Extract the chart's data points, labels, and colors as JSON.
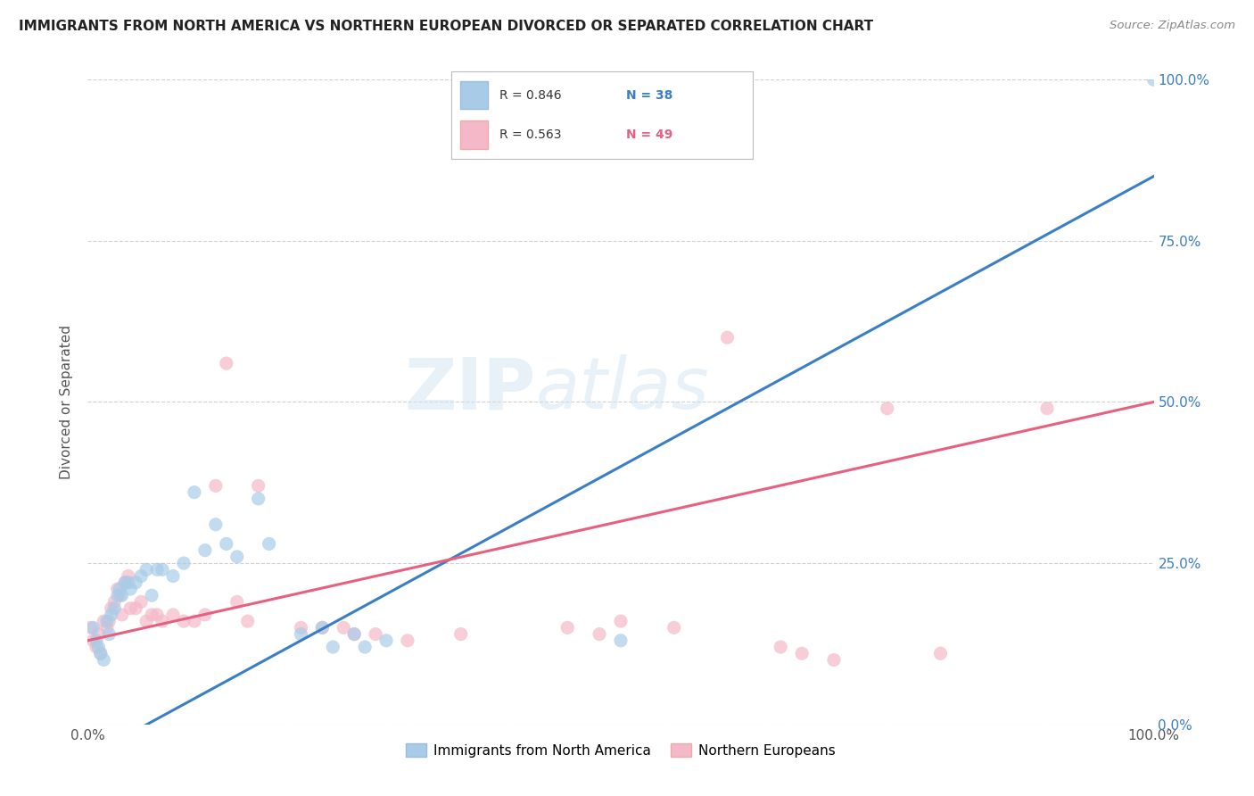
{
  "title": "IMMIGRANTS FROM NORTH AMERICA VS NORTHERN EUROPEAN DIVORCED OR SEPARATED CORRELATION CHART",
  "source": "Source: ZipAtlas.com",
  "ylabel": "Divorced or Separated",
  "legend_label_blue": "Immigrants from North America",
  "legend_label_pink": "Northern Europeans",
  "blue_R": "0.846",
  "blue_N": "38",
  "pink_R": "0.563",
  "pink_N": "49",
  "watermark_zip": "ZIP",
  "watermark_atlas": "atlas",
  "blue_color": "#a8cce8",
  "pink_color": "#f4b8c8",
  "blue_line_color": "#3a7ec8",
  "pink_line_color": "#e86080",
  "right_axis_color": "#3a7ec8",
  "blue_scatter": [
    [
      0.5,
      15.0
    ],
    [
      0.8,
      13.0
    ],
    [
      1.0,
      12.0
    ],
    [
      1.2,
      11.0
    ],
    [
      1.5,
      10.0
    ],
    [
      1.8,
      16.0
    ],
    [
      2.0,
      14.0
    ],
    [
      2.2,
      17.0
    ],
    [
      2.5,
      18.0
    ],
    [
      2.8,
      20.0
    ],
    [
      3.0,
      21.0
    ],
    [
      3.2,
      20.0
    ],
    [
      3.5,
      22.0
    ],
    [
      3.8,
      22.0
    ],
    [
      4.0,
      21.0
    ],
    [
      4.5,
      22.0
    ],
    [
      5.0,
      23.0
    ],
    [
      5.5,
      24.0
    ],
    [
      6.0,
      20.0
    ],
    [
      6.5,
      24.0
    ],
    [
      7.0,
      24.0
    ],
    [
      8.0,
      23.0
    ],
    [
      9.0,
      25.0
    ],
    [
      10.0,
      36.0
    ],
    [
      11.0,
      27.0
    ],
    [
      12.0,
      31.0
    ],
    [
      13.0,
      28.0
    ],
    [
      14.0,
      26.0
    ],
    [
      16.0,
      35.0
    ],
    [
      17.0,
      28.0
    ],
    [
      20.0,
      14.0
    ],
    [
      22.0,
      15.0
    ],
    [
      23.0,
      12.0
    ],
    [
      25.0,
      14.0
    ],
    [
      26.0,
      12.0
    ],
    [
      28.0,
      13.0
    ],
    [
      50.0,
      13.0
    ],
    [
      100.0,
      100.0
    ]
  ],
  "pink_scatter": [
    [
      0.3,
      15.0
    ],
    [
      0.5,
      13.0
    ],
    [
      0.8,
      12.0
    ],
    [
      1.0,
      14.0
    ],
    [
      1.2,
      11.0
    ],
    [
      1.5,
      16.0
    ],
    [
      1.8,
      15.0
    ],
    [
      2.0,
      16.0
    ],
    [
      2.2,
      18.0
    ],
    [
      2.5,
      19.0
    ],
    [
      2.8,
      21.0
    ],
    [
      3.0,
      20.0
    ],
    [
      3.2,
      17.0
    ],
    [
      3.5,
      22.0
    ],
    [
      3.8,
      23.0
    ],
    [
      4.0,
      18.0
    ],
    [
      4.5,
      18.0
    ],
    [
      5.0,
      19.0
    ],
    [
      5.5,
      16.0
    ],
    [
      6.0,
      17.0
    ],
    [
      6.5,
      17.0
    ],
    [
      7.0,
      16.0
    ],
    [
      8.0,
      17.0
    ],
    [
      9.0,
      16.0
    ],
    [
      10.0,
      16.0
    ],
    [
      11.0,
      17.0
    ],
    [
      12.0,
      37.0
    ],
    [
      13.0,
      56.0
    ],
    [
      14.0,
      19.0
    ],
    [
      15.0,
      16.0
    ],
    [
      16.0,
      37.0
    ],
    [
      20.0,
      15.0
    ],
    [
      22.0,
      15.0
    ],
    [
      24.0,
      15.0
    ],
    [
      25.0,
      14.0
    ],
    [
      27.0,
      14.0
    ],
    [
      30.0,
      13.0
    ],
    [
      35.0,
      14.0
    ],
    [
      45.0,
      15.0
    ],
    [
      48.0,
      14.0
    ],
    [
      50.0,
      16.0
    ],
    [
      55.0,
      15.0
    ],
    [
      60.0,
      60.0
    ],
    [
      65.0,
      12.0
    ],
    [
      67.0,
      11.0
    ],
    [
      70.0,
      10.0
    ],
    [
      75.0,
      49.0
    ],
    [
      80.0,
      11.0
    ],
    [
      90.0,
      49.0
    ]
  ],
  "blue_line": [
    -5.0,
    85.0
  ],
  "pink_line": [
    13.0,
    50.0
  ],
  "xlim": [
    0,
    100
  ],
  "ylim": [
    0,
    100
  ],
  "right_yticks": [
    0,
    25,
    50,
    75,
    100
  ],
  "right_yticklabels": [
    "0.0%",
    "25.0%",
    "50.0%",
    "75.0%",
    "100.0%"
  ],
  "background_color": "#ffffff",
  "grid_color": "#cccccc"
}
